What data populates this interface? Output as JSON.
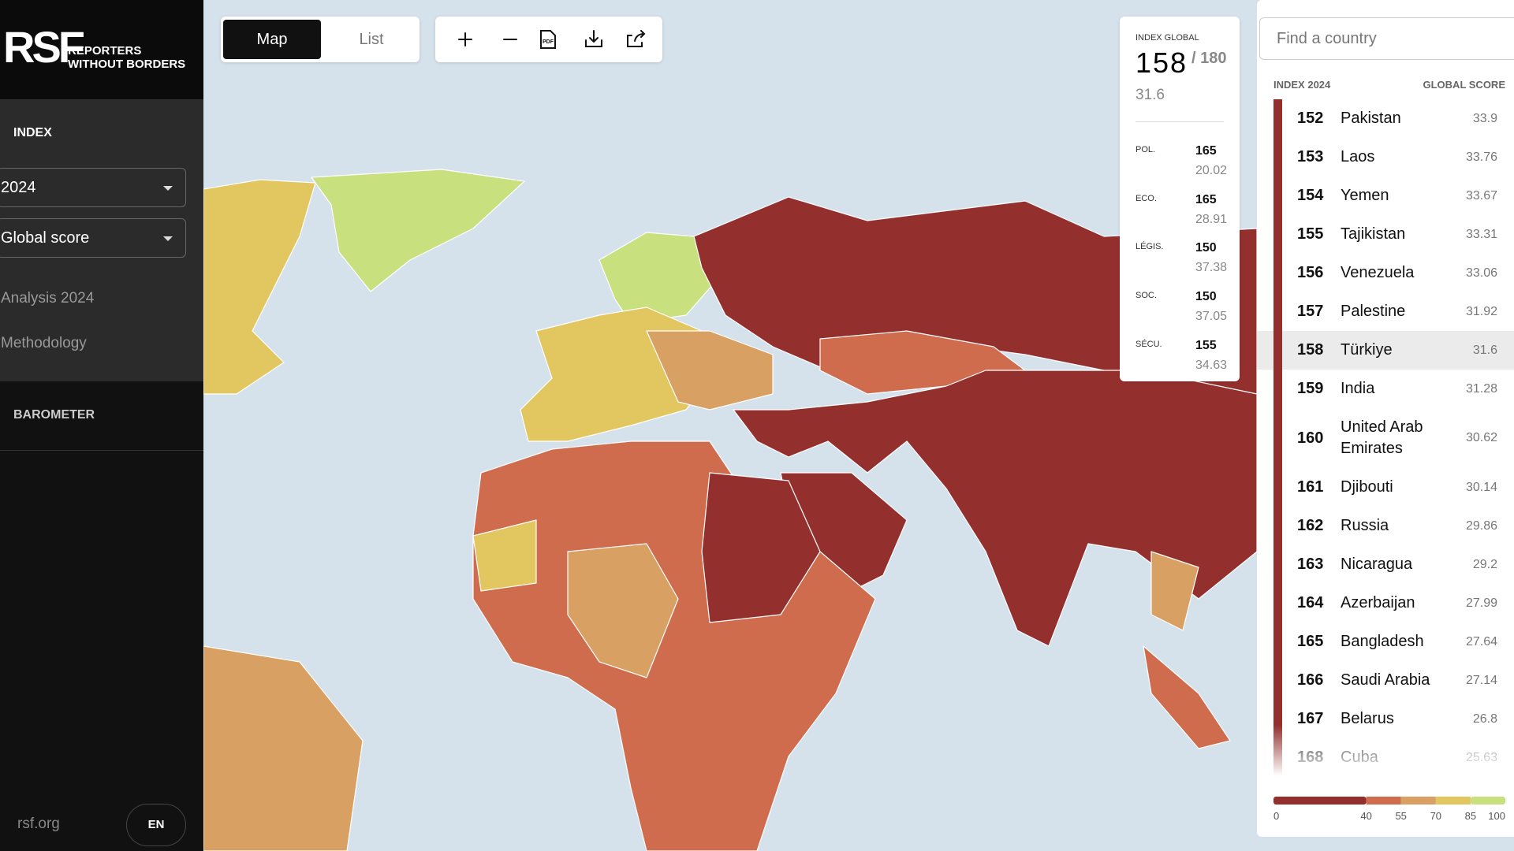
{
  "sidebar": {
    "logo": "RSF",
    "logo_lines": [
      "REPORTERS",
      "WITHOUT BORDERS"
    ],
    "index_label": "INDEX",
    "year": "2024",
    "score_select": "Global score",
    "links": [
      "Analysis 2024",
      "Methodology"
    ],
    "barometer": "BAROMETER",
    "site": "rsf.org",
    "lang": "EN"
  },
  "toolbar": {
    "tabs": [
      "Map",
      "List"
    ],
    "pdf_icon": "PDF"
  },
  "detail": {
    "label": "INDEX GLOBAL",
    "rank": 158,
    "total": "/ 180",
    "score": 31.6,
    "indicators": [
      {
        "label": "POL.",
        "rank": 165,
        "score": 20.02
      },
      {
        "label": "ECO.",
        "rank": 165,
        "score": 28.91
      },
      {
        "label": "LÉGIS.",
        "rank": 150,
        "score": 37.38
      },
      {
        "label": "SOC.",
        "rank": 150,
        "score": 37.05
      },
      {
        "label": "SÉCU.",
        "rank": 155,
        "score": 34.63
      }
    ]
  },
  "ranking": {
    "search_placeholder": "Find a country",
    "col_index": "INDEX 2024",
    "col_score": "GLOBAL SCORE",
    "rows": [
      {
        "rank": 152,
        "country": "Pakistan",
        "score": 33.9
      },
      {
        "rank": 153,
        "country": "Laos",
        "score": 33.76
      },
      {
        "rank": 154,
        "country": "Yemen",
        "score": 33.67
      },
      {
        "rank": 155,
        "country": "Tajikistan",
        "score": 33.31
      },
      {
        "rank": 156,
        "country": "Venezuela",
        "score": 33.06
      },
      {
        "rank": 157,
        "country": "Palestine",
        "score": 31.92
      },
      {
        "rank": 158,
        "country": "Türkiye",
        "score": 31.6
      },
      {
        "rank": 159,
        "country": "India",
        "score": 31.28
      },
      {
        "rank": 160,
        "country": "United Arab Emirates",
        "score": 30.62
      },
      {
        "rank": 161,
        "country": "Djibouti",
        "score": 30.14
      },
      {
        "rank": 162,
        "country": "Russia",
        "score": 29.86
      },
      {
        "rank": 163,
        "country": "Nicaragua",
        "score": 29.2
      },
      {
        "rank": 164,
        "country": "Azerbaijan",
        "score": 27.99
      },
      {
        "rank": 165,
        "country": "Bangladesh",
        "score": 27.64
      },
      {
        "rank": 166,
        "country": "Saudi Arabia",
        "score": 27.14
      },
      {
        "rank": 167,
        "country": "Belarus",
        "score": 26.8
      },
      {
        "rank": 168,
        "country": "Cuba",
        "score": 25.63
      }
    ]
  },
  "legend": {
    "ticks": [
      0,
      40,
      55,
      70,
      85,
      100
    ]
  }
}
